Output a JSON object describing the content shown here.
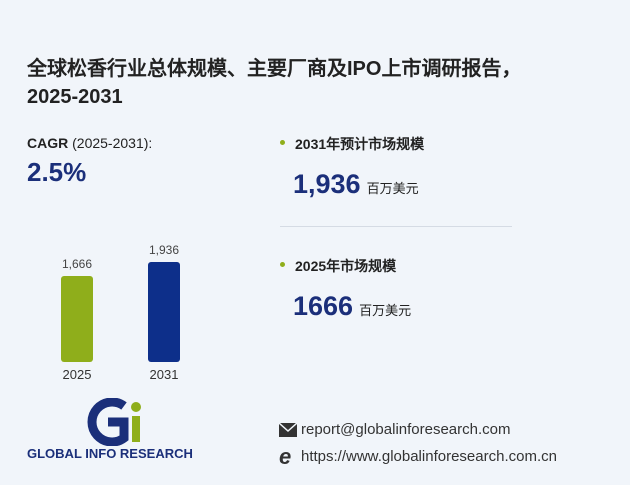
{
  "title": [
    "全球松香行业总体规模、主要厂商及IPO上市调研报告，",
    "2025-2031"
  ],
  "cagr": {
    "label": "CAGR",
    "period": "(2025-2031):",
    "value": "2.5%"
  },
  "stats": [
    {
      "label": "2031年预计市场规模",
      "value": "1,936",
      "unit": "百万美元"
    },
    {
      "label": "2025年市场规模",
      "value": "1666",
      "unit": "百万美元"
    }
  ],
  "logo": {
    "text": "GLOBAL INFO RESEARCH"
  },
  "contact": {
    "email": "report@globalinforesearch.com",
    "website": "https://www.globalinforesearch.com.cn"
  },
  "chart_data": {
    "type": "bar",
    "categories": [
      "2025",
      "2031"
    ],
    "values": [
      1666,
      1936
    ],
    "value_labels": [
      "1,666",
      "1,936"
    ],
    "colors": [
      "#8fae1b",
      "#0d2f8a"
    ]
  }
}
